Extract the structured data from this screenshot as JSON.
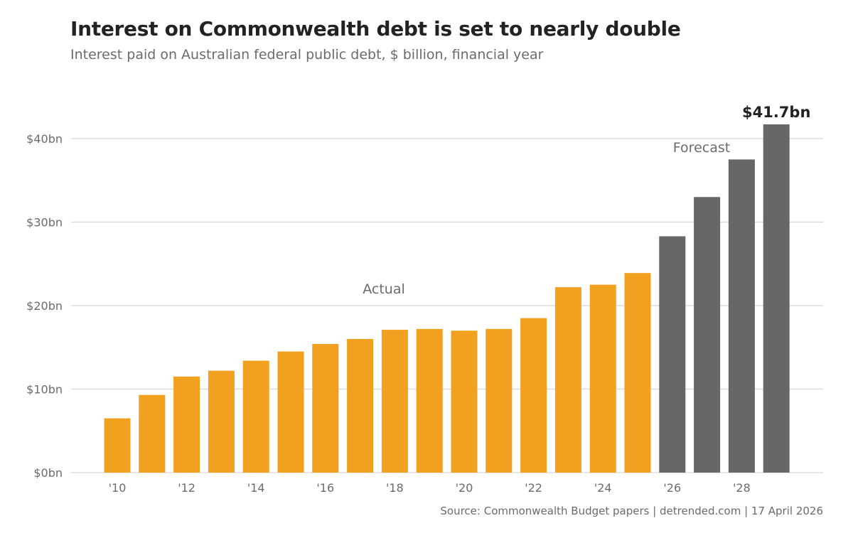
{
  "chart_data": {
    "type": "bar",
    "title": "Interest on Commonwealth debt is set to nearly double",
    "subtitle": "Interest paid on Australian federal public debt, $ billion, financial year",
    "source": "Source: Commonwealth Budget papers | detrended.com | 17 April 2026",
    "categories": [
      "'10",
      "'11",
      "'12",
      "'13",
      "'14",
      "'15",
      "'16",
      "'17",
      "'18",
      "'19",
      "'20",
      "'21",
      "'22",
      "'23",
      "'24",
      "'25",
      "'26",
      "'27",
      "'28",
      "'29"
    ],
    "tick_labels": [
      "'10",
      "'12",
      "'14",
      "'16",
      "'18",
      "'20",
      "'22",
      "'24",
      "'26",
      "'28"
    ],
    "values": [
      6.5,
      9.3,
      11.5,
      12.2,
      13.4,
      14.5,
      15.4,
      16.0,
      17.1,
      17.2,
      17.0,
      17.2,
      18.5,
      22.2,
      22.5,
      23.9,
      28.3,
      33.0,
      37.5,
      41.7
    ],
    "status": [
      "actual",
      "actual",
      "actual",
      "actual",
      "actual",
      "actual",
      "actual",
      "actual",
      "actual",
      "actual",
      "actual",
      "actual",
      "actual",
      "actual",
      "actual",
      "actual",
      "forecast",
      "forecast",
      "forecast",
      "forecast"
    ],
    "y_ticks": [
      0,
      10,
      20,
      30,
      40
    ],
    "y_tick_labels": [
      "$0bn",
      "$10bn",
      "$20bn",
      "$30bn",
      "$40bn"
    ],
    "ylim": [
      0,
      45
    ],
    "grid": true,
    "annotations": {
      "actual": "Actual",
      "forecast": "Forecast",
      "last_value": "$41.7bn"
    },
    "colors": {
      "actual": "#F2A020",
      "forecast": "#676767",
      "grid": "#dddddd"
    }
  }
}
